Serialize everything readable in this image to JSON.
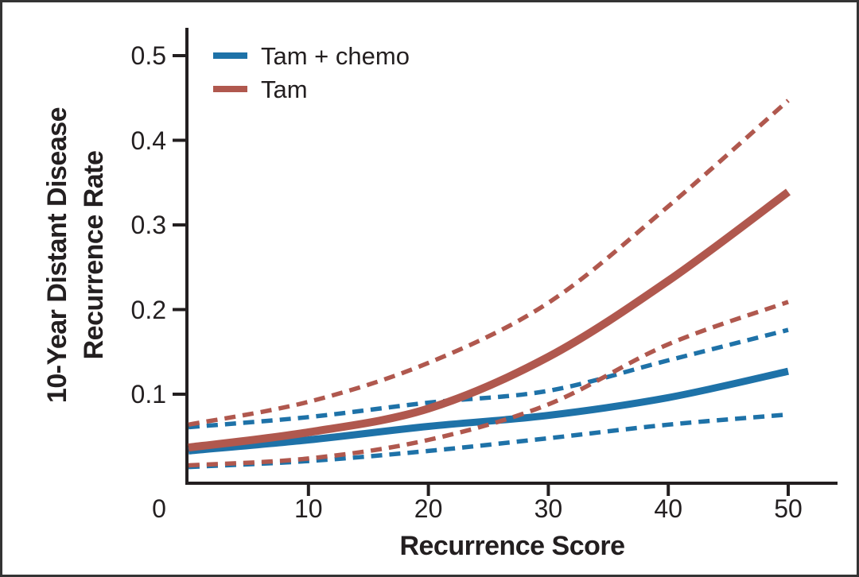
{
  "figure": {
    "background": "#ffffff",
    "border_color": "#343434",
    "axis_color": "#231f20"
  },
  "legend": {
    "items": [
      {
        "label": "Tam + chemo",
        "color": "#1e72a8"
      },
      {
        "label": "Tam",
        "color": "#b0584e"
      }
    ]
  },
  "chart_data": {
    "type": "line",
    "title": "",
    "xlabel": "Recurrence Score",
    "ylabel": "10-Year Distant Disease Recurrence Rate",
    "ylabel_line1": "10-Year Distant Disease",
    "ylabel_line2": "Recurrence Rate",
    "x": [
      0,
      10,
      20,
      30,
      40,
      50
    ],
    "x_tick_labels": [
      "0",
      "10",
      "20",
      "30",
      "40",
      "50"
    ],
    "y_ticks": [
      0.1,
      0.2,
      0.3,
      0.4,
      0.5
    ],
    "xlim": [
      0,
      54
    ],
    "ylim": [
      0,
      0.54
    ],
    "grid": false,
    "legend_position": "top-left",
    "series": [
      {
        "name": "Tam + chemo",
        "style": "solid",
        "color": "#1e72a8",
        "width": 9,
        "values": [
          0.033,
          0.046,
          0.062,
          0.075,
          0.096,
          0.127
        ]
      },
      {
        "name": "Tam + chemo upper 95% CI",
        "style": "dashed",
        "color": "#1e72a8",
        "width": 5.5,
        "values": [
          0.061,
          0.073,
          0.09,
          0.104,
          0.14,
          0.176
        ]
      },
      {
        "name": "Tam + chemo lower 95% CI",
        "style": "dashed",
        "color": "#1e72a8",
        "width": 5.5,
        "values": [
          0.014,
          0.021,
          0.033,
          0.048,
          0.064,
          0.076
        ]
      },
      {
        "name": "Tam",
        "style": "solid",
        "color": "#b0584e",
        "width": 10,
        "values": [
          0.037,
          0.055,
          0.083,
          0.144,
          0.234,
          0.339
        ]
      },
      {
        "name": "Tam upper 95% CI",
        "style": "dashed",
        "color": "#b0584e",
        "width": 5.5,
        "values": [
          0.064,
          0.091,
          0.137,
          0.208,
          0.322,
          0.447
        ]
      },
      {
        "name": "Tam lower 95% CI",
        "style": "dashed",
        "color": "#b0584e",
        "width": 5.5,
        "values": [
          0.016,
          0.024,
          0.046,
          0.088,
          0.159,
          0.209
        ]
      }
    ]
  }
}
